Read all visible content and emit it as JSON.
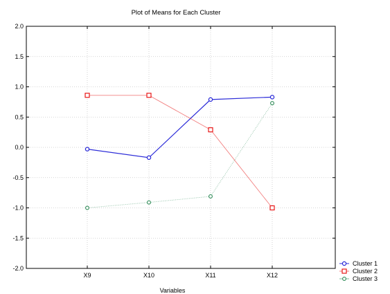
{
  "chart_data": {
    "type": "line",
    "title": "Plot of Means for Each Cluster",
    "xlabel": "Variables",
    "ylabel": "",
    "categories": [
      "X9",
      "X10",
      "X11",
      "X12"
    ],
    "ylim": [
      -2.0,
      2.0
    ],
    "yticks": [
      "2.0",
      "1.5",
      "1.0",
      "0.5",
      "0.0",
      "-0.5",
      "-1.0",
      "-1.5",
      "-2.0"
    ],
    "ytick_values": [
      2.0,
      1.5,
      1.0,
      0.5,
      0.0,
      -0.5,
      -1.0,
      -1.5,
      -2.0
    ],
    "grid": true,
    "legend_position": "bottom-right",
    "series": [
      {
        "name": "Cluster 1",
        "values": [
          -0.03,
          -0.17,
          0.79,
          0.83
        ],
        "color": "#2b2bd8",
        "marker": "circle"
      },
      {
        "name": "Cluster 2",
        "values": [
          0.86,
          0.86,
          0.29,
          -1.0
        ],
        "color": "#e81818",
        "marker": "square"
      },
      {
        "name": "Cluster 3",
        "values": [
          -1.0,
          -0.91,
          -0.81,
          0.73
        ],
        "color": "#2e8b57",
        "marker": "diamond"
      }
    ]
  }
}
